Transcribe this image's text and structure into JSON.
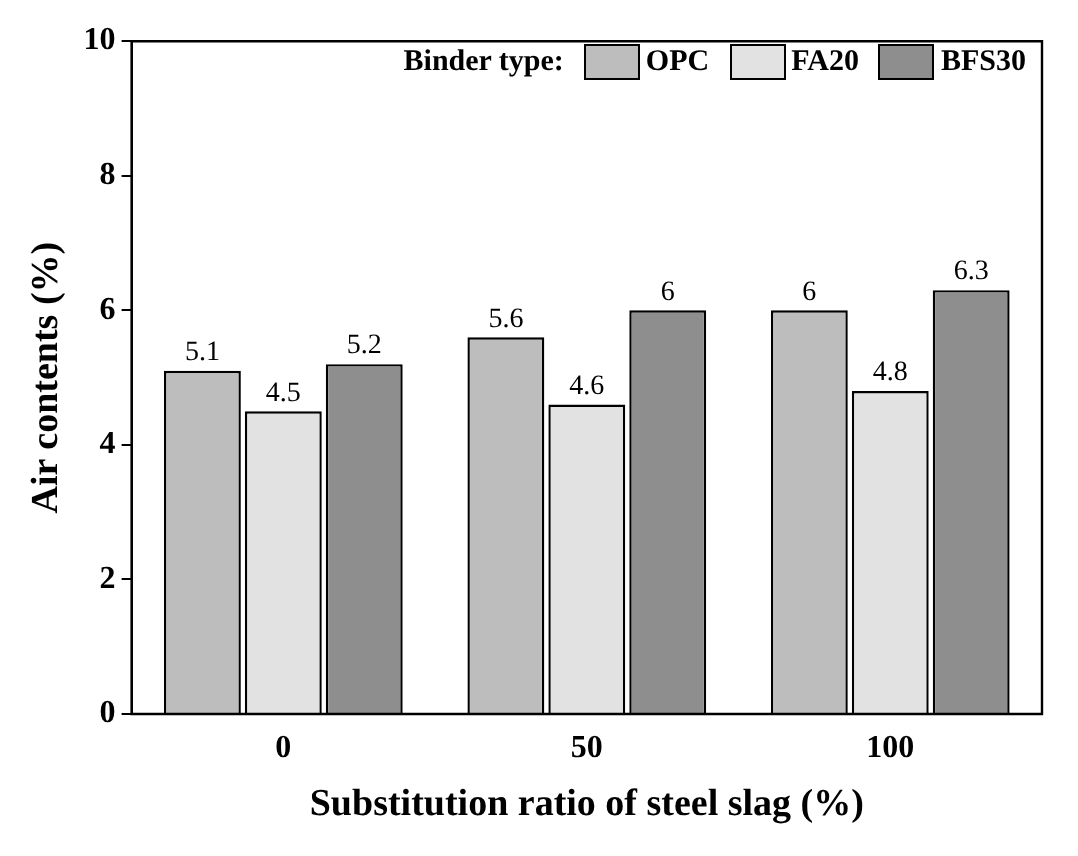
{
  "chart_data": {
    "type": "bar",
    "xlabel": "Substitution ratio of steel slag (%)",
    "ylabel": "Air contents (%)",
    "legend_title": "Binder type:",
    "categories": [
      "0",
      "50",
      "100"
    ],
    "series": [
      {
        "name": "OPC",
        "color": "#bdbdbd",
        "values": [
          5.1,
          5.6,
          6
        ]
      },
      {
        "name": "FA20",
        "color": "#e2e2e2",
        "values": [
          4.5,
          4.6,
          4.8
        ]
      },
      {
        "name": "BFS30",
        "color": "#8e8e8e",
        "values": [
          5.2,
          6,
          6.3
        ]
      }
    ],
    "ylim": [
      0,
      10
    ],
    "yticks": [
      0,
      2,
      4,
      6,
      8,
      10
    ],
    "data_labels": true,
    "legend": "top right",
    "grid": false
  }
}
